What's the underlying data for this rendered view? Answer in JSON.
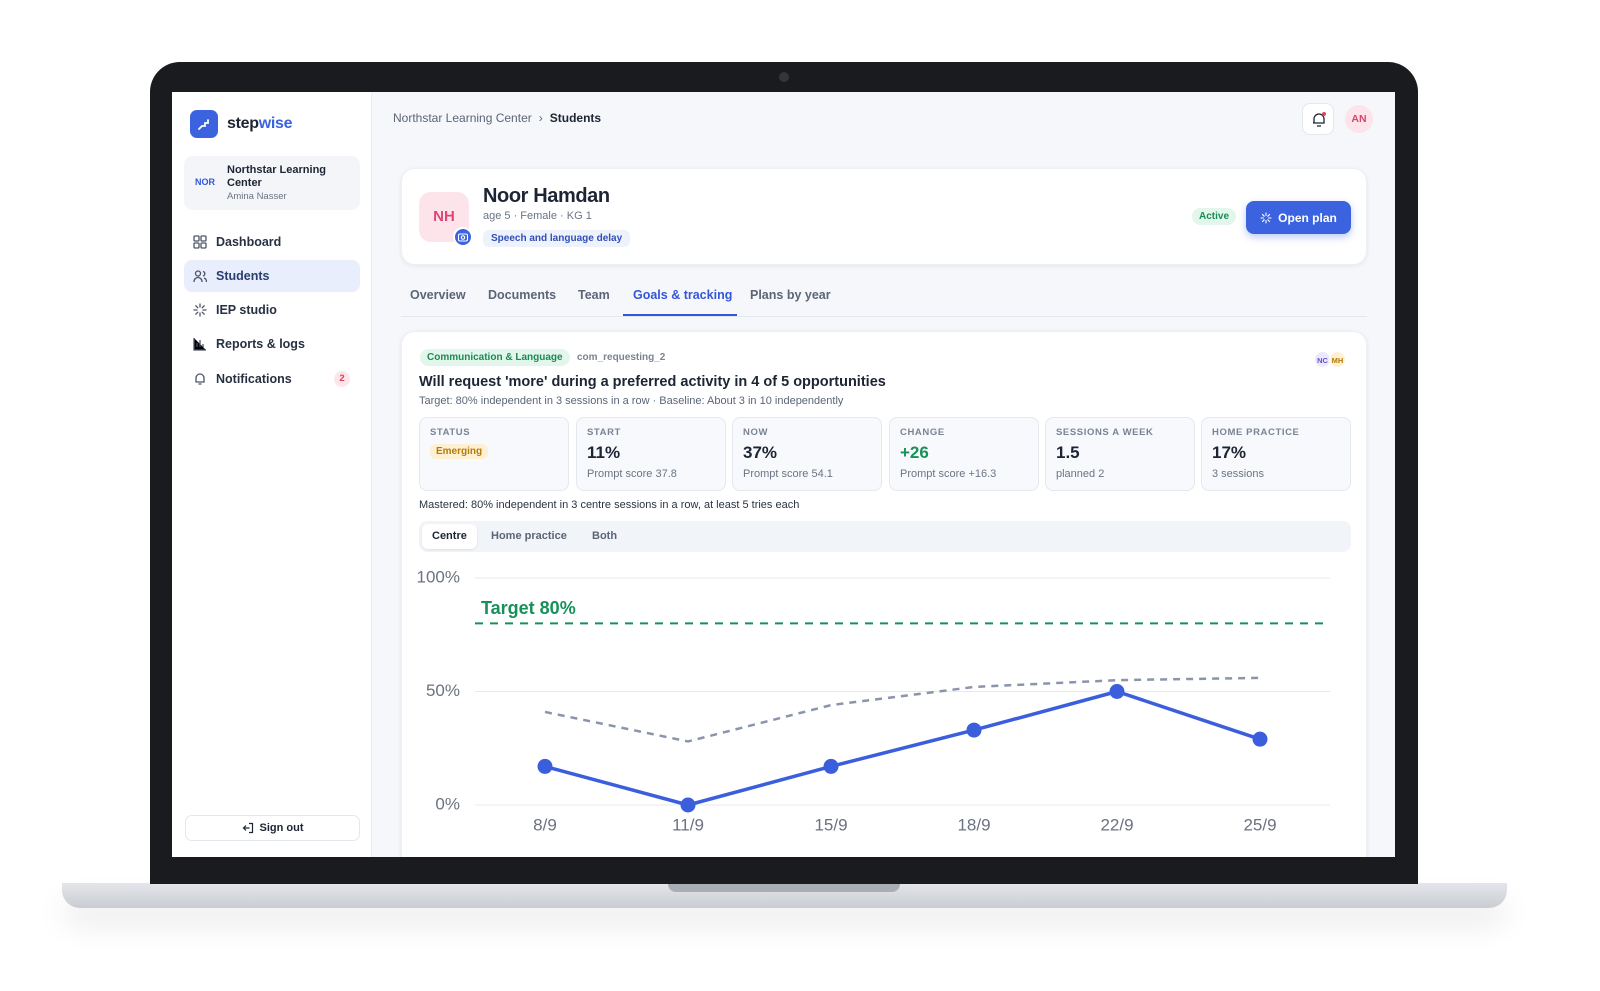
{
  "app": {
    "brand": {
      "first": "step",
      "second": "wise"
    },
    "org": {
      "badge": "NOR",
      "name": "Northstar Learning Center",
      "user": "Amina Nasser"
    },
    "nav": [
      {
        "label": "Dashboard"
      },
      {
        "label": "Students"
      },
      {
        "label": "IEP studio"
      },
      {
        "label": "Reports & logs"
      },
      {
        "label": "Notifications",
        "badge": "2"
      }
    ],
    "sign_out": "Sign out"
  },
  "breadcrumb": [
    "Northstar Learning Center",
    "Students"
  ],
  "user_initials": "AN",
  "student": {
    "initials": "NH",
    "name": "Noor Hamdan",
    "details": "age 5 · Female · KG 1",
    "tag": "Speech and language delay",
    "status": "Active",
    "action": "Open plan"
  },
  "tabs": [
    "Overview",
    "Documents",
    "Team",
    "Goals & tracking",
    "Plans by year"
  ],
  "goal": {
    "domain": "Communication & Language",
    "code": "com_requesting_2",
    "team": [
      "NC",
      "MH"
    ],
    "title": "Will request 'more' during a preferred activity in 4 of 5 opportunities",
    "subtitle": "Target: 80% independent in 3 sessions in a row · Baseline: About 3 in 10 independently",
    "stats": [
      {
        "label": "STATUS",
        "value": "Emerging"
      },
      {
        "label": "START",
        "value": "11%",
        "note": "Prompt score 37.8"
      },
      {
        "label": "NOW",
        "value": "37%",
        "note": "Prompt score 54.1"
      },
      {
        "label": "CHANGE",
        "value": "+26",
        "note": "Prompt score +16.3"
      },
      {
        "label": "SESSIONS A WEEK",
        "value": "1.5",
        "note": "planned 2"
      },
      {
        "label": "HOME PRACTICE",
        "value": "17%",
        "note": "3 sessions"
      }
    ],
    "mastered": "Mastered: 80% independent in 3 centre sessions in a row, at least 5 tries each",
    "views": [
      "Centre",
      "Home practice",
      "Both"
    ]
  },
  "chart_data": {
    "type": "line",
    "categories": [
      "8/9",
      "11/9",
      "15/9",
      "18/9",
      "22/9",
      "25/9"
    ],
    "series": [
      {
        "color": "#3b5fdc",
        "values": [
          17,
          0,
          17,
          33,
          50,
          29
        ],
        "markers": true
      },
      {
        "color": "#8a94ab",
        "values": [
          41,
          28,
          44,
          52,
          55,
          56
        ],
        "dashed": true
      }
    ],
    "ylim": [
      0,
      100
    ],
    "yticks": [
      {
        "value": 0,
        "label": "0%"
      },
      {
        "value": 50,
        "label": "50%"
      },
      {
        "value": 100,
        "label": "100%"
      }
    ],
    "grid": true,
    "target": {
      "value": 80,
      "label": "Target 80%",
      "color": "#179159"
    }
  }
}
